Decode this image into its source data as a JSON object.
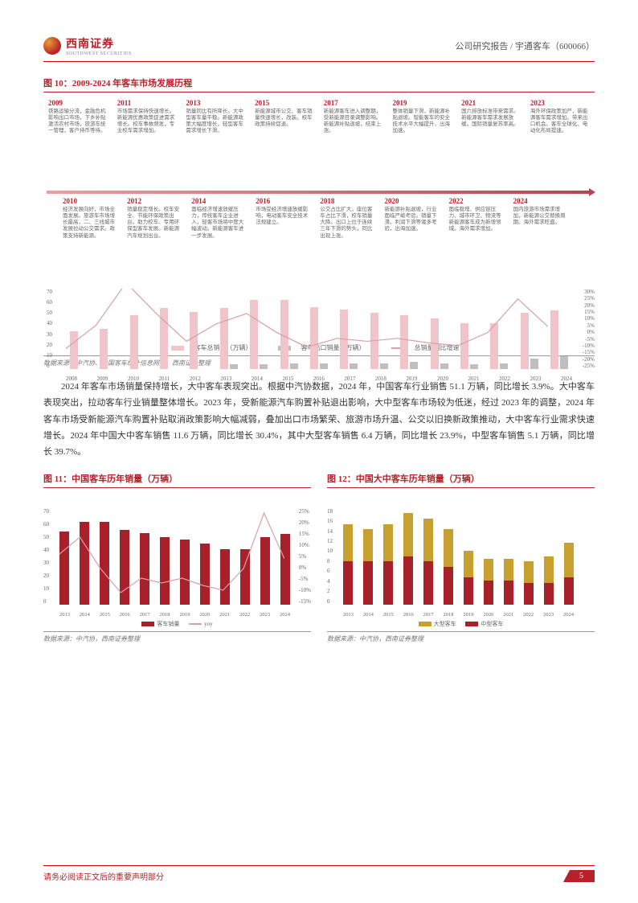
{
  "header": {
    "company": "西南证券",
    "company_en": "SOUTHWEST SECURITIES",
    "right": "公司研究报告 / 宇通客车（600066）"
  },
  "fig10": {
    "title": "图 10：2009-2024 年客车市场发展历程",
    "upper": [
      {
        "year": "2009",
        "text": "铁路运输分流，金融危机影响出口市场，下乡补贴激活农村市场，旅游车统一管理，客户持币等待。"
      },
      {
        "year": "2011",
        "text": "市场需求保持快速增长。新能源优惠政策促进需求增长。校车事故频发，专业校车需求增加。"
      },
      {
        "year": "2013",
        "text": "销量同比有所降长。大中型客车量平稳。新能源政策大幅度增长，轻型客车需求增长下滑。"
      },
      {
        "year": "2015",
        "text": "新能源城市公交、客车销量快速增长，改装。校车政策持续促退。"
      },
      {
        "year": "2017",
        "text": "新能源客车进入调整期，受新能源目录调整影响。新能源补贴退坡，结束上涨。"
      },
      {
        "year": "2019",
        "text": "整体销量下滑，新能源补贴退坡。智能客车的安全技术水平大幅提升，出海加速。"
      },
      {
        "year": "2021",
        "text": "国六排放标准带来需求。新能源客车需求发展放缓。国际销量复苏率高。"
      },
      {
        "year": "2023",
        "text": "海外环保政策加严，新能源客车需求增加。带来出口机会。客车全球化、电动化布局提速。"
      }
    ],
    "lower": [
      {
        "year": "2010",
        "text": "经济发展向好，市场全面发展。旅游车市场增长最高，二、三线城市发展拉动公交需求。政策支持新能源。"
      },
      {
        "year": "2012",
        "text": "销量稳定增长。校车安全、节能环保政策出台。助力校车、专用环保型客车发展。新能源汽车规划出台。"
      },
      {
        "year": "2014",
        "text": "面临经济增速放缓压力，传统客车企业进入，轻客市场将中度大幅波动。新能源客车进一步发展。"
      },
      {
        "year": "2016",
        "text": "市场受经济增速放缓影响，电动客车安全技术法规建立。"
      },
      {
        "year": "2018",
        "text": "公交占比扩大，座位客车占比下滑，校车销量大降。出口上位于连续三年下滑的势头，同比出现上涨。"
      },
      {
        "year": "2020",
        "text": "新能源补贴退坡，行业面临严峻考验。销量下滑。利润下滑等诸多考验，出海加速。"
      },
      {
        "year": "2022",
        "text": "面临稳增、供应链压力、城市环卫、物流等新能源客车成为新增领域。海外需求增加。"
      },
      {
        "year": "2024",
        "text": "国内旅游市场需求增加，新能源公交替换周期。海外需求旺盛。"
      }
    ],
    "years": [
      "2008",
      "2009",
      "2010",
      "2011",
      "2012",
      "2013",
      "2014",
      "2015",
      "2016",
      "2017",
      "2018",
      "2019",
      "2020",
      "2021",
      "2022",
      "2023",
      "2024"
    ],
    "pink_values": [
      33,
      35,
      47,
      53,
      50,
      53,
      60,
      60,
      54,
      52,
      49,
      47,
      44,
      40,
      40,
      49,
      51
    ],
    "gray_values": [
      0,
      0,
      0,
      0,
      0,
      4,
      4,
      5,
      5,
      5,
      5,
      6,
      5,
      4,
      5,
      9,
      11
    ],
    "line_values": [
      -11,
      5,
      34,
      13,
      -6,
      6,
      13,
      0,
      -10,
      -4,
      -6,
      -4,
      -7,
      -9,
      0,
      23,
      4
    ],
    "ylim": [
      0,
      70
    ],
    "ytick_step": 10,
    "ylim2": [
      -25,
      30
    ],
    "ytick2_step": 5,
    "bar_pink_color": "#f0c4c8",
    "bar_gray_color": "#bfbfbf",
    "line_color": "#d8a0a8",
    "legend": [
      "客车总销量（万辆）",
      "客车出口销量（万辆）",
      "总销量同比增速"
    ],
    "source": "数据来源：中汽协、中国客车统计信息网等，西南证券整理"
  },
  "body": "2024 年客车市场销量保持增长，大中客车表现突出。根据中汽协数据，2024 年，中国客车行业销售 51.1 万辆，同比增长 3.9%。大中客车表现突出，拉动客车行业销量整体增长。2023 年，受新能源汽车购置补贴退出影响，大中型客车市场较为低迷，经过 2023 年的调整，2024 年客车市场受新能源汽车购置补贴取消政策影响大幅减弱，叠加出口市场繁荣、旅游市场升温、公交以旧换新政策推动，大中客车行业需求快速增长。2024 年中国大中客车销售 11.6 万辆，同比增长 30.4%，其中大型客车销售 6.4 万辆，同比增长 23.9%，中型客车销售 5.1 万辆，同比增长 39.7%。",
  "fig11": {
    "title": "图 11：中国客车历年销量（万辆）",
    "years": [
      "2013",
      "2014",
      "2015",
      "2016",
      "2017",
      "2018",
      "2019",
      "2020",
      "2021",
      "2022",
      "2023",
      "2024"
    ],
    "values": [
      53,
      60,
      60,
      54,
      52,
      49,
      47,
      44,
      40,
      40,
      49,
      51
    ],
    "yoy": [
      6,
      13,
      0,
      -10,
      -4,
      -6,
      -4,
      -7,
      -9,
      0,
      23,
      4
    ],
    "ylim": [
      0,
      70
    ],
    "ytick_step": 10,
    "ylim2": [
      -15,
      25
    ],
    "ytick2_step": 5,
    "bar_color": "#a8202a",
    "line_color": "#d8a0a8",
    "legend": [
      "客车销量",
      "yoy"
    ],
    "source": "数据来源：中汽协，西南证券整理"
  },
  "fig12": {
    "title": "图 12：中国大中客车历年销量（万辆）",
    "years": [
      "2013",
      "2014",
      "2015",
      "2016",
      "2017",
      "2018",
      "2019",
      "2020",
      "2021",
      "2022",
      "2023",
      "2024"
    ],
    "large": [
      7,
      6,
      7,
      8,
      8,
      7,
      5,
      4,
      4,
      4,
      5,
      6.4
    ],
    "medium": [
      8,
      8,
      8,
      9,
      8,
      7,
      5,
      4.5,
      4.5,
      4,
      4,
      5.1
    ],
    "ylim": [
      0,
      18
    ],
    "ytick_step": 2,
    "large_color": "#c8a030",
    "medium_color": "#a8202a",
    "legend": [
      "大型客车",
      "中型客车"
    ],
    "source": "数据来源：中汽协，西南证券整理"
  },
  "footer": {
    "text": "请务必阅读正文后的重要声明部分",
    "page": "5"
  }
}
